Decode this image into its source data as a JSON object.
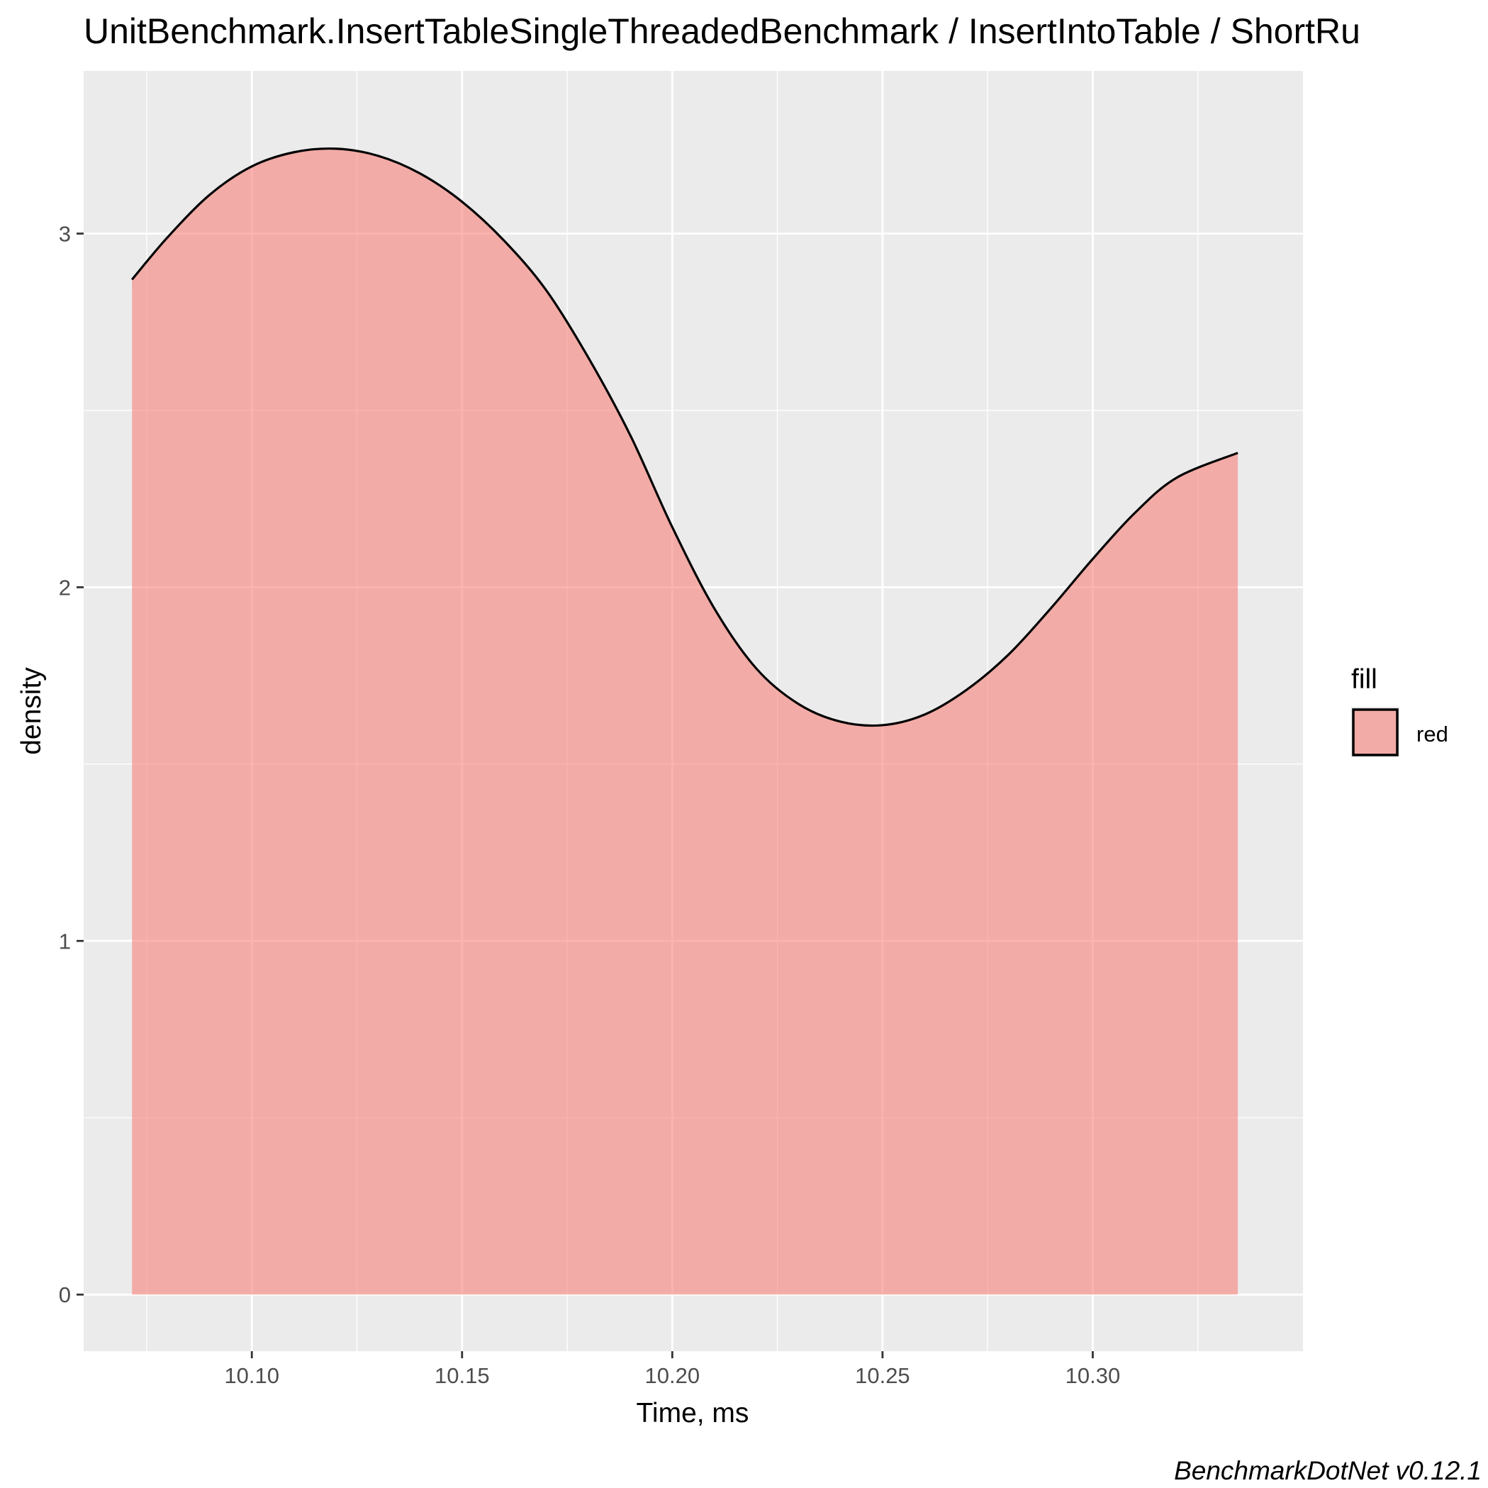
{
  "chart_data": {
    "type": "area",
    "title": "UnitBenchmark.InsertTableSingleThreadedBenchmark / InsertIntoTable / ShortRu",
    "xlabel": "Time, ms",
    "ylabel": "density",
    "xlim": [
      10.06,
      10.35
    ],
    "ylim": [
      -0.16,
      3.46
    ],
    "x_ticks": [
      10.1,
      10.15,
      10.2,
      10.25,
      10.3
    ],
    "x_tick_labels": [
      "10.10",
      "10.15",
      "10.20",
      "10.25",
      "10.30"
    ],
    "y_ticks": [
      0,
      1,
      2,
      3
    ],
    "y_tick_labels": [
      "0",
      "1",
      "2",
      "3"
    ],
    "grid": true,
    "legend": {
      "title": "fill",
      "position": "right",
      "entries": [
        {
          "label": "red",
          "color": "#f8766d"
        }
      ]
    },
    "series": [
      {
        "name": "red",
        "fill_color": "#f8766d",
        "fill_opacity": 0.55,
        "line_color": "#000000",
        "x": [
          10.0715,
          10.08,
          10.09,
          10.1,
          10.11,
          10.12,
          10.13,
          10.14,
          10.15,
          10.16,
          10.17,
          10.18,
          10.19,
          10.2,
          10.21,
          10.22,
          10.23,
          10.24,
          10.25,
          10.26,
          10.27,
          10.28,
          10.29,
          10.3,
          10.31,
          10.32,
          10.3345
        ],
        "y": [
          2.87,
          2.99,
          3.11,
          3.19,
          3.23,
          3.24,
          3.22,
          3.17,
          3.09,
          2.98,
          2.84,
          2.65,
          2.43,
          2.17,
          1.94,
          1.77,
          1.67,
          1.62,
          1.61,
          1.64,
          1.71,
          1.81,
          1.94,
          2.08,
          2.21,
          2.31,
          2.38
        ]
      }
    ]
  },
  "caption": "BenchmarkDotNet v0.12.1"
}
